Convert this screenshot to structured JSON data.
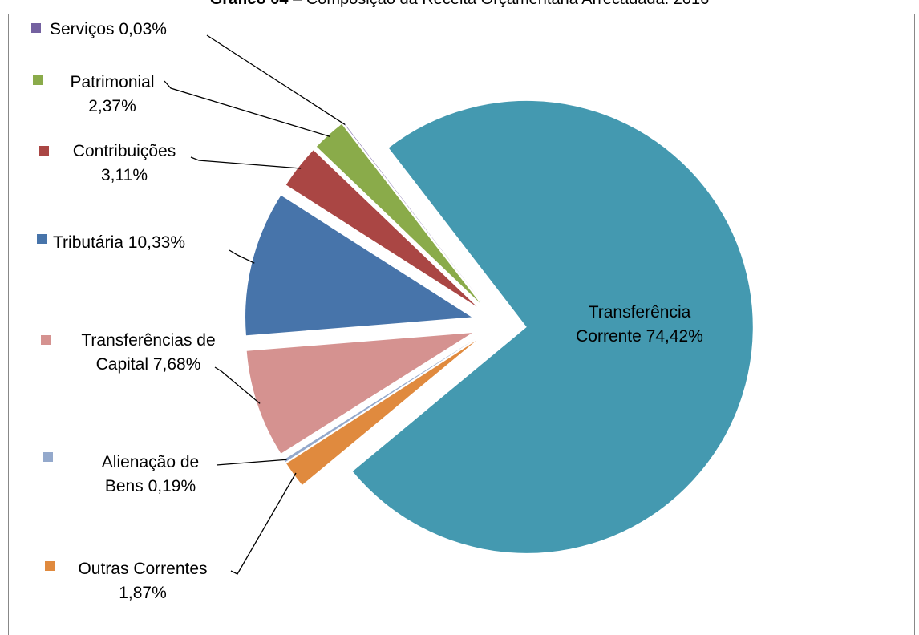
{
  "chart_data": {
    "type": "pie",
    "title_label": "Gráfico 04",
    "title": "– Composição da Receita Orçamentária Arrecadada: 2016",
    "categories": [
      "Transferência Corrente",
      "Outras Correntes",
      "Alienação de Bens",
      "Transferências de Capital",
      "Tributária",
      "Contribuições",
      "Patrimonial",
      "Serviços"
    ],
    "values": [
      74.42,
      1.87,
      0.19,
      7.68,
      10.33,
      3.11,
      2.37,
      0.03
    ],
    "value_labels": [
      "74,42%",
      "1,87%",
      "0,19%",
      "7,68%",
      "10,33%",
      "3,11%",
      "2,37%",
      "0,03%"
    ],
    "colors": [
      "#4499b0",
      "#e08a3e",
      "#94a9cc",
      "#d59290",
      "#4774aa",
      "#aa4644",
      "#8aab4a",
      "#7461a0"
    ]
  }
}
